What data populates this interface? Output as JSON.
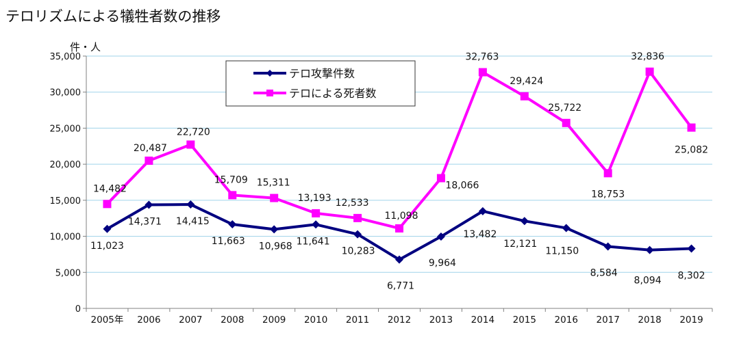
{
  "page": {
    "title": "テロリズムによる犠牲者数の推移"
  },
  "chart_data": {
    "type": "line",
    "title": "テロリズムによる犠牲者数の推移",
    "ylabel": "件・人",
    "xlabel": "",
    "categories": [
      "2005年",
      "2006",
      "2007",
      "2008",
      "2009",
      "2010",
      "2011",
      "2012",
      "2013",
      "2014",
      "2015",
      "2016",
      "2017",
      "2018",
      "2019"
    ],
    "ylim": [
      0,
      35000
    ],
    "yticks": [
      0,
      5000,
      10000,
      15000,
      20000,
      25000,
      30000,
      35000
    ],
    "ytick_labels": [
      "0",
      "5,000",
      "10,000",
      "15,000",
      "20,000",
      "25,000",
      "30,000",
      "35,000"
    ],
    "grid": true,
    "legend": "top-center",
    "series": [
      {
        "name": "テロ攻撃件数",
        "color": "#000080",
        "marker": "diamond",
        "values": [
          11023,
          14371,
          14415,
          11663,
          10968,
          11641,
          10283,
          6771,
          9964,
          13482,
          12121,
          11150,
          8584,
          8094,
          8302
        ],
        "labels": [
          "11,023",
          "14,371",
          "14,415",
          "11,663",
          "10,968",
          "11,641",
          "10,283",
          "6,771",
          "9,964",
          "13,482",
          "12,121",
          "11,150",
          "8,584",
          "8,094",
          "8,302"
        ]
      },
      {
        "name": "テロによる死者数",
        "color": "#FF00FF",
        "marker": "square",
        "values": [
          14482,
          20487,
          22720,
          15709,
          15311,
          13193,
          12533,
          11098,
          18066,
          32763,
          29424,
          25722,
          18753,
          32836,
          25082
        ],
        "labels": [
          "14,482",
          "20,487",
          "22,720",
          "15,709",
          "15,311",
          "13,193",
          "12,533",
          "11,098",
          "18,066",
          "32,763",
          "29,424",
          "25,722",
          "18,753",
          "32,836",
          "25,082"
        ]
      }
    ]
  }
}
